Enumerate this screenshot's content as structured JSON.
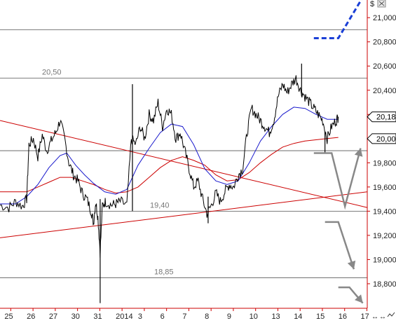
{
  "chart_data": {
    "type": "line",
    "currency_symbol": "$",
    "ylim": [
      18600,
      21200
    ],
    "y_ticks": [
      {
        "value": 21000,
        "label": "21,000"
      },
      {
        "value": 20800,
        "label": "20,800"
      },
      {
        "value": 20600,
        "label": "20,600"
      },
      {
        "value": 20400,
        "label": "20,400"
      },
      {
        "value": 20200,
        "label": "20,200"
      },
      {
        "value": 20000,
        "label": "20,000"
      },
      {
        "value": 19800,
        "label": "19,800"
      },
      {
        "value": 19600,
        "label": "19,600"
      },
      {
        "value": 19400,
        "label": "19,400"
      },
      {
        "value": 19200,
        "label": "19,200"
      },
      {
        "value": 19000,
        "label": "19,000"
      },
      {
        "value": 18800,
        "label": "18,800"
      }
    ],
    "x_ticks": [
      {
        "index": 0,
        "label": "25"
      },
      {
        "index": 1,
        "label": "26"
      },
      {
        "index": 2,
        "label": "27"
      },
      {
        "index": 3,
        "label": "30"
      },
      {
        "index": 4,
        "label": "31"
      },
      {
        "index": 5,
        "label": "2014"
      },
      {
        "index": 6,
        "label": "3"
      },
      {
        "index": 7,
        "label": "6"
      },
      {
        "index": 8,
        "label": "7"
      },
      {
        "index": 9,
        "label": "8"
      },
      {
        "index": 10,
        "label": "9"
      },
      {
        "index": 11,
        "label": "10"
      },
      {
        "index": 12,
        "label": "13"
      },
      {
        "index": 13,
        "label": "14"
      },
      {
        "index": 14,
        "label": "15"
      },
      {
        "index": 15,
        "label": "16"
      },
      {
        "index": 16,
        "label": "17"
      }
    ],
    "xlim": [
      -0.2,
      16.3
    ],
    "levels": [
      {
        "value": 20900,
        "label": ""
      },
      {
        "value": 20500,
        "label": "20,50"
      },
      {
        "value": 19900,
        "label": ""
      },
      {
        "value": 19400,
        "label": "19,40"
      },
      {
        "value": 18850,
        "label": "18,85"
      }
    ],
    "price_series": [
      [
        -0.2,
        19450
      ],
      [
        0.2,
        19430
      ],
      [
        0.5,
        19480
      ],
      [
        0.8,
        19440
      ],
      [
        1.0,
        19500
      ],
      [
        1.1,
        19950
      ],
      [
        1.3,
        20000
      ],
      [
        1.5,
        19850
      ],
      [
        1.7,
        20030
      ],
      [
        1.9,
        19900
      ],
      [
        2.1,
        19980
      ],
      [
        2.3,
        20050
      ],
      [
        2.5,
        20150
      ],
      [
        2.7,
        20000
      ],
      [
        2.9,
        19800
      ],
      [
        3.1,
        19700
      ],
      [
        3.3,
        19650
      ],
      [
        3.5,
        19550
      ],
      [
        3.7,
        19500
      ],
      [
        3.9,
        19400
      ],
      [
        4.0,
        19300
      ],
      [
        4.1,
        19480
      ],
      [
        4.2,
        19350
      ],
      [
        4.3,
        19060
      ],
      [
        4.4,
        19450
      ],
      [
        4.55,
        19480
      ],
      [
        4.8,
        19450
      ],
      [
        5.0,
        19460
      ],
      [
        5.2,
        19480
      ],
      [
        5.5,
        19450
      ],
      [
        5.7,
        20000
      ],
      [
        5.9,
        19950
      ],
      [
        6.1,
        20100
      ],
      [
        6.3,
        20000
      ],
      [
        6.5,
        20200
      ],
      [
        6.7,
        20150
      ],
      [
        6.9,
        20300
      ],
      [
        7.1,
        20100
      ],
      [
        7.3,
        20250
      ],
      [
        7.5,
        20200
      ],
      [
        7.7,
        20000
      ],
      [
        7.9,
        20050
      ],
      [
        8.1,
        19900
      ],
      [
        8.3,
        19750
      ],
      [
        8.5,
        19600
      ],
      [
        8.7,
        19650
      ],
      [
        8.9,
        19500
      ],
      [
        9.1,
        19380
      ],
      [
        9.3,
        19450
      ],
      [
        9.5,
        19550
      ],
      [
        9.7,
        19480
      ],
      [
        9.9,
        19560
      ],
      [
        10.1,
        19620
      ],
      [
        10.3,
        19600
      ],
      [
        10.5,
        19700
      ],
      [
        10.7,
        19750
      ],
      [
        10.9,
        20050
      ],
      [
        11.1,
        20250
      ],
      [
        11.3,
        20200
      ],
      [
        11.5,
        20150
      ],
      [
        11.7,
        20100
      ],
      [
        11.9,
        20050
      ],
      [
        12.1,
        20150
      ],
      [
        12.3,
        20350
      ],
      [
        12.5,
        20450
      ],
      [
        12.7,
        20380
      ],
      [
        12.9,
        20450
      ],
      [
        13.1,
        20500
      ],
      [
        13.3,
        20400
      ],
      [
        13.5,
        20350
      ],
      [
        13.7,
        20300
      ],
      [
        13.9,
        20250
      ],
      [
        14.1,
        20200
      ],
      [
        14.3,
        20150
      ],
      [
        14.5,
        20000
      ],
      [
        14.7,
        20100
      ],
      [
        14.9,
        20150
      ],
      [
        15.0,
        20180
      ]
    ],
    "price_spikes": [
      {
        "x": 4.3,
        "low": 18640,
        "high": 19500
      },
      {
        "x": 5.75,
        "low": 19400,
        "high": 20450
      },
      {
        "x": 13.35,
        "low": 20350,
        "high": 20620
      },
      {
        "x": 9.15,
        "low": 19300,
        "high": 19520
      },
      {
        "x": 14.4,
        "low": 19880,
        "high": 20050
      }
    ],
    "ma_blue": [
      [
        -0.2,
        19460
      ],
      [
        0.5,
        19460
      ],
      [
        1.0,
        19520
      ],
      [
        1.5,
        19620
      ],
      [
        2.0,
        19760
      ],
      [
        2.5,
        19860
      ],
      [
        2.8,
        19880
      ],
      [
        3.2,
        19780
      ],
      [
        3.6,
        19700
      ],
      [
        4.0,
        19630
      ],
      [
        4.5,
        19560
      ],
      [
        5.0,
        19540
      ],
      [
        5.5,
        19580
      ],
      [
        6.0,
        19780
      ],
      [
        6.5,
        19920
      ],
      [
        7.0,
        20050
      ],
      [
        7.5,
        20120
      ],
      [
        8.0,
        20100
      ],
      [
        8.5,
        19950
      ],
      [
        9.0,
        19750
      ],
      [
        9.5,
        19650
      ],
      [
        10.0,
        19620
      ],
      [
        10.5,
        19650
      ],
      [
        11.0,
        19800
      ],
      [
        11.5,
        19980
      ],
      [
        12.0,
        20100
      ],
      [
        12.5,
        20200
      ],
      [
        13.0,
        20260
      ],
      [
        13.5,
        20250
      ],
      [
        14.0,
        20200
      ],
      [
        14.5,
        20160
      ],
      [
        15.0,
        20160
      ]
    ],
    "ma_red": [
      [
        -0.2,
        19560
      ],
      [
        0.5,
        19560
      ],
      [
        1.0,
        19560
      ],
      [
        1.5,
        19600
      ],
      [
        2.0,
        19640
      ],
      [
        2.5,
        19680
      ],
      [
        3.0,
        19680
      ],
      [
        3.5,
        19650
      ],
      [
        4.0,
        19620
      ],
      [
        4.5,
        19580
      ],
      [
        5.0,
        19550
      ],
      [
        5.5,
        19560
      ],
      [
        6.0,
        19600
      ],
      [
        6.5,
        19680
      ],
      [
        7.0,
        19760
      ],
      [
        7.5,
        19820
      ],
      [
        8.0,
        19850
      ],
      [
        8.5,
        19820
      ],
      [
        9.0,
        19780
      ],
      [
        9.5,
        19700
      ],
      [
        10.0,
        19650
      ],
      [
        10.5,
        19660
      ],
      [
        11.0,
        19720
      ],
      [
        11.5,
        19800
      ],
      [
        12.0,
        19870
      ],
      [
        12.5,
        19930
      ],
      [
        13.0,
        19960
      ],
      [
        13.5,
        19980
      ],
      [
        14.0,
        19990
      ],
      [
        14.5,
        20000
      ],
      [
        15.0,
        20010
      ]
    ],
    "trendlines": [
      {
        "from": [
          -0.2,
          20150
        ],
        "to": [
          16.3,
          19430
        ]
      },
      {
        "from": [
          -0.2,
          19180
        ],
        "to": [
          16.3,
          19560
        ]
      }
    ],
    "projection_dashed": [
      [
        13.9,
        20830
      ],
      [
        15.0,
        20830
      ],
      [
        16.2,
        21200
      ]
    ],
    "scenario_arrows": [
      {
        "points": [
          [
            13.9,
            19880
          ],
          [
            14.7,
            19880
          ],
          [
            15.3,
            19440
          ],
          [
            16.0,
            19920
          ]
        ]
      },
      {
        "points": [
          [
            14.4,
            19310
          ],
          [
            15.0,
            19310
          ],
          [
            15.7,
            18920
          ]
        ]
      },
      {
        "points": [
          [
            15.0,
            18770
          ],
          [
            15.5,
            18770
          ],
          [
            16.1,
            18640
          ]
        ]
      }
    ],
    "current_prices": [
      {
        "value": 20180,
        "label": "20,18"
      },
      {
        "value": 20000,
        "label": "20,00"
      }
    ]
  }
}
